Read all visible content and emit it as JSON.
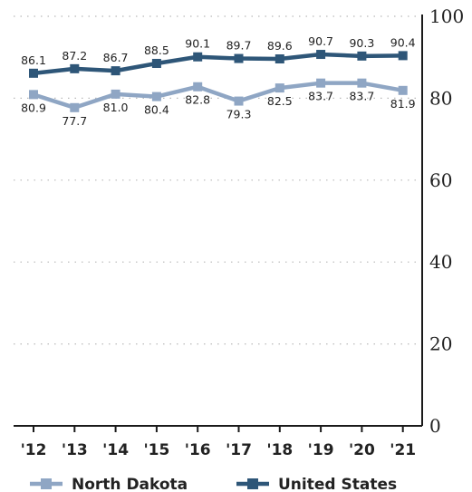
{
  "chart_data": {
    "type": "line",
    "categories": [
      "'12",
      "'13",
      "'14",
      "'15",
      "'16",
      "'17",
      "'18",
      "'19",
      "'20",
      "'21"
    ],
    "series": [
      {
        "name": "North Dakota",
        "values": [
          80.9,
          77.7,
          81.0,
          80.4,
          82.8,
          79.3,
          82.5,
          83.7,
          83.7,
          81.9
        ],
        "color": "#8fa6c4",
        "label_position": "below"
      },
      {
        "name": "United States",
        "values": [
          86.1,
          87.2,
          86.7,
          88.5,
          90.1,
          89.7,
          89.6,
          90.7,
          90.3,
          90.4
        ],
        "color": "#2e5678",
        "label_position": "above"
      }
    ],
    "data_labels": {
      "North Dakota": [
        "80.9",
        "77.7",
        "81.0",
        "80.4",
        "82.8",
        "79.3",
        "82.5",
        "83.7",
        "83.7",
        "81.9"
      ],
      "United States": [
        "86.1",
        "87.2",
        "86.7",
        "88.5",
        "90.1",
        "89.7",
        "89.6",
        "90.7",
        "90.3",
        "90.4"
      ]
    },
    "ylim": [
      0,
      100
    ],
    "y_ticks": [
      0,
      20,
      40,
      60,
      80,
      100
    ],
    "y_axis_side": "right",
    "grid": "dotted horizontal",
    "legend_position": "bottom-left",
    "title": "",
    "xlabel": "",
    "ylabel": ""
  }
}
